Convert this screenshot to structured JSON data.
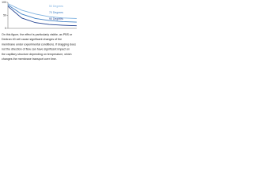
{
  "chart_data": {
    "type": "line",
    "x": [
      0,
      1,
      2,
      3,
      4,
      5
    ],
    "series": [
      {
        "name": "50 Degrees",
        "color": "#7fb2e0",
        "values": [
          95,
          70,
          55,
          45,
          40,
          38
        ]
      },
      {
        "name": "70 Degrees",
        "color": "#3f7fc4",
        "values": [
          90,
          55,
          38,
          30,
          26,
          24
        ]
      },
      {
        "name": "90 Degrees",
        "color": "#1f3f8f",
        "values": [
          85,
          40,
          22,
          15,
          12,
          10
        ]
      }
    ],
    "xlim": [
      0,
      5
    ],
    "ylim": [
      0,
      100
    ],
    "yticks": [
      0,
      50,
      100
    ]
  },
  "caption": [
    "On this figure, the effect is particularly visible, as PBS or",
    "Dextran 40 cell cause significant changes of the",
    "membrane under experimental conditions. If dragging does",
    "not the direction of flow can have significant impact on",
    "the capillary structure depending on temperature, which",
    "changes the membrane transport over time."
  ]
}
